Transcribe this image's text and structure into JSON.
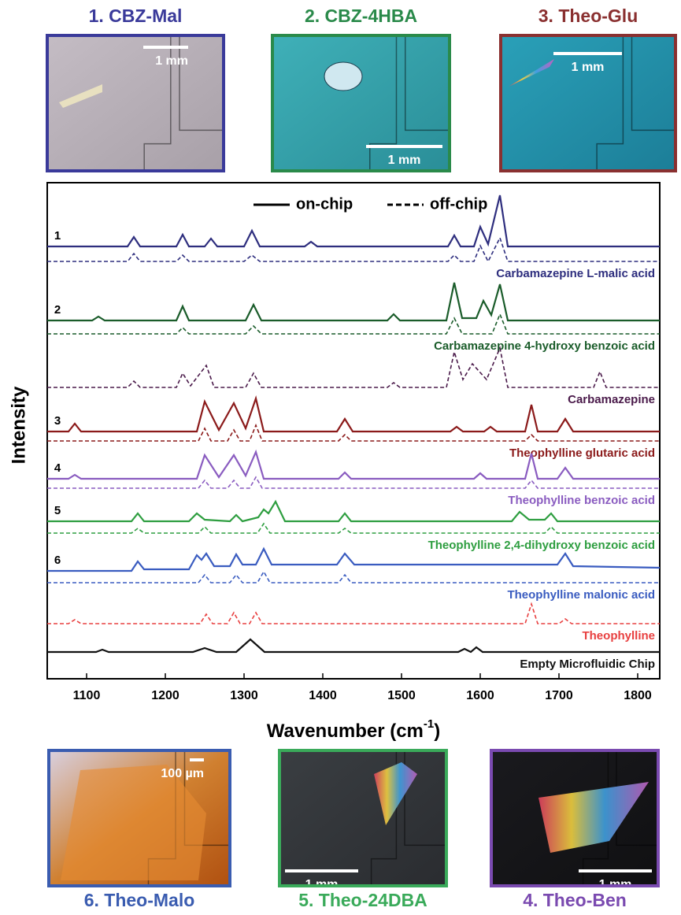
{
  "chart_data": {
    "type": "line",
    "xlabel": "Wavenumber (cm",
    "xlabel_sup": "-1",
    "xlabel_end": ")",
    "ylabel": "Intensity",
    "xlim": [
      1050,
      1828
    ],
    "xticks": [
      1100,
      1200,
      1300,
      1400,
      1500,
      1600,
      1700,
      1800
    ],
    "ylim": [
      0,
      630
    ],
    "legend": [
      {
        "label": "on-chip",
        "style": "solid"
      },
      {
        "label": "off-chip",
        "style": "dashed"
      }
    ],
    "series": [
      {
        "number": "1",
        "style": "solid",
        "color": "#2e2e7e",
        "x": [
          1050,
          1152,
          1160,
          1168,
          1214,
          1222,
          1230,
          1250,
          1258,
          1266,
          1300,
          1310,
          1320,
          1377,
          1385,
          1393,
          1559,
          1567,
          1575,
          1592,
          1600,
          1610,
          1625,
          1635,
          1828
        ],
        "values": [
          549,
          549,
          561,
          549,
          549,
          564,
          549,
          549,
          559,
          549,
          549,
          569,
          549,
          549,
          555,
          549,
          549,
          563,
          549,
          549,
          574,
          552,
          614,
          549,
          549
        ]
      },
      {
        "label": "Carbamazepine L-malic acid",
        "style": "dashed",
        "color": "#2e2e7e",
        "x": [
          1050,
          1152,
          1160,
          1168,
          1214,
          1222,
          1230,
          1300,
          1310,
          1320,
          1559,
          1567,
          1575,
          1592,
          1600,
          1610,
          1625,
          1635,
          1828
        ],
        "values": [
          530,
          530,
          540,
          530,
          530,
          538,
          530,
          530,
          538,
          530,
          530,
          538,
          530,
          530,
          550,
          530,
          560,
          530,
          530
        ]
      },
      {
        "number": "2",
        "style": "solid",
        "color": "#1a5c2a",
        "x": [
          1050,
          1107,
          1115,
          1123,
          1214,
          1222,
          1230,
          1302,
          1312,
          1322,
          1482,
          1490,
          1498,
          1557,
          1567,
          1577,
          1595,
          1604,
          1614,
          1625,
          1635,
          1828
        ],
        "values": [
          455,
          455,
          460,
          455,
          455,
          473,
          455,
          455,
          475,
          455,
          455,
          463,
          455,
          455,
          503,
          458,
          458,
          480,
          462,
          501,
          455,
          455
        ]
      },
      {
        "label": "Carbamazepine 4-hydroxy benzoic acid",
        "style": "dashed",
        "color": "#1a5c2a",
        "x": [
          1050,
          1214,
          1222,
          1230,
          1302,
          1312,
          1322,
          1557,
          1567,
          1577,
          1615,
          1625,
          1635,
          1828
        ],
        "values": [
          438,
          438,
          446,
          438,
          438,
          448,
          438,
          438,
          458,
          438,
          438,
          463,
          438,
          438
        ]
      },
      {
        "label": "Carbamazepine",
        "style": "dashed",
        "color": "#4a1a4a",
        "x": [
          1050,
          1152,
          1160,
          1168,
          1214,
          1222,
          1232,
          1252,
          1262,
          1302,
          1312,
          1322,
          1482,
          1490,
          1498,
          1557,
          1567,
          1578,
          1590,
          1608,
          1625,
          1635,
          1744,
          1752,
          1760,
          1828
        ],
        "values": [
          370,
          370,
          378,
          370,
          370,
          388,
          372,
          398,
          370,
          370,
          388,
          370,
          370,
          376,
          370,
          370,
          415,
          380,
          400,
          380,
          420,
          370,
          370,
          390,
          370,
          370
        ]
      },
      {
        "number": "3",
        "style": "solid",
        "color": "#8b1a1a",
        "x": [
          1050,
          1077,
          1085,
          1093,
          1240,
          1250,
          1268,
          1287,
          1302,
          1315,
          1325,
          1418,
          1428,
          1438,
          1562,
          1570,
          1578,
          1605,
          1613,
          1621,
          1657,
          1665,
          1673,
          1698,
          1708,
          1718,
          1828
        ],
        "values": [
          314,
          314,
          324,
          314,
          314,
          352,
          316,
          350,
          318,
          356,
          314,
          314,
          330,
          314,
          314,
          320,
          314,
          314,
          320,
          314,
          314,
          348,
          314,
          314,
          330,
          314,
          314
        ]
      },
      {
        "label": "Theophylline glutaric acid",
        "style": "dashed",
        "color": "#8b1a1a",
        "x": [
          1050,
          1242,
          1250,
          1258,
          1279,
          1287,
          1295,
          1307,
          1315,
          1323,
          1420,
          1428,
          1436,
          1657,
          1665,
          1673,
          1828
        ],
        "values": [
          302,
          302,
          318,
          302,
          302,
          316,
          302,
          302,
          322,
          302,
          302,
          310,
          302,
          302,
          310,
          302,
          302
        ]
      },
      {
        "number": "4",
        "style": "solid",
        "color": "#8a5cc0",
        "x": [
          1050,
          1077,
          1085,
          1093,
          1240,
          1250,
          1268,
          1287,
          1302,
          1315,
          1325,
          1420,
          1428,
          1436,
          1592,
          1600,
          1608,
          1657,
          1665,
          1673,
          1698,
          1708,
          1718,
          1828
        ],
        "values": [
          254,
          254,
          259,
          254,
          254,
          284,
          256,
          284,
          258,
          288,
          254,
          254,
          262,
          254,
          254,
          261,
          254,
          254,
          286,
          254,
          254,
          268,
          254,
          254
        ]
      },
      {
        "label": "Theophylline benzoic acid",
        "style": "dashed",
        "color": "#8a5cc0",
        "x": [
          1050,
          1242,
          1250,
          1258,
          1279,
          1287,
          1295,
          1307,
          1315,
          1323,
          1657,
          1665,
          1673,
          1828
        ],
        "values": [
          242,
          242,
          252,
          242,
          242,
          252,
          242,
          242,
          256,
          242,
          242,
          252,
          242,
          242
        ]
      },
      {
        "number": "5",
        "style": "solid",
        "color": "#2e9e40",
        "x": [
          1050,
          1157,
          1165,
          1173,
          1230,
          1240,
          1250,
          1282,
          1290,
          1298,
          1318,
          1325,
          1331,
          1340,
          1352,
          1420,
          1428,
          1436,
          1640,
          1650,
          1662,
          1682,
          1690,
          1698,
          1828
        ],
        "values": [
          200,
          200,
          210,
          200,
          200,
          210,
          202,
          200,
          208,
          200,
          205,
          215,
          210,
          225,
          200,
          200,
          210,
          200,
          200,
          212,
          202,
          202,
          210,
          200,
          200
        ]
      },
      {
        "label": "Theophylline 2,4-dihydroxy benzoic acid",
        "style": "dashed",
        "color": "#2e9e40",
        "x": [
          1050,
          1157,
          1165,
          1173,
          1242,
          1250,
          1258,
          1317,
          1325,
          1333,
          1420,
          1428,
          1436,
          1682,
          1690,
          1698,
          1828
        ],
        "values": [
          185,
          185,
          191,
          185,
          185,
          193,
          185,
          185,
          197,
          185,
          185,
          191,
          185,
          185,
          193,
          185,
          185
        ]
      },
      {
        "number": "6",
        "style": "solid",
        "color": "#3a5cc0",
        "x": [
          1050,
          1157,
          1165,
          1173,
          1230,
          1240,
          1246,
          1252,
          1262,
          1282,
          1290,
          1298,
          1315,
          1325,
          1335,
          1418,
          1428,
          1440,
          1698,
          1708,
          1718,
          1828
        ],
        "values": [
          137,
          137,
          149,
          139,
          139,
          157,
          151,
          159,
          143,
          143,
          158,
          145,
          145,
          165,
          145,
          145,
          159,
          145,
          145,
          159,
          143,
          141
        ]
      },
      {
        "label": "Theophylline malonic acid",
        "style": "dashed",
        "color": "#3a5cc0",
        "x": [
          1050,
          1242,
          1250,
          1258,
          1282,
          1290,
          1298,
          1317,
          1325,
          1333,
          1420,
          1428,
          1436,
          1828
        ],
        "values": [
          122,
          122,
          132,
          122,
          122,
          132,
          122,
          122,
          136,
          122,
          122,
          132,
          122,
          122
        ]
      },
      {
        "label": "Theophylline",
        "style": "dashed",
        "color": "#e84040",
        "x": [
          1050,
          1077,
          1085,
          1093,
          1244,
          1252,
          1260,
          1279,
          1287,
          1295,
          1307,
          1315,
          1323,
          1657,
          1665,
          1673,
          1700,
          1708,
          1716,
          1828
        ],
        "values": [
          70,
          70,
          75,
          70,
          70,
          82,
          70,
          70,
          84,
          70,
          70,
          84,
          70,
          70,
          95,
          70,
          70,
          76,
          70,
          70
        ]
      },
      {
        "label": "Empty Microfluidic Chip",
        "style": "solid",
        "color": "#111111",
        "x": [
          1050,
          1112,
          1120,
          1128,
          1235,
          1250,
          1265,
          1290,
          1308,
          1326,
          1572,
          1580,
          1588,
          1595,
          1603,
          1828
        ],
        "values": [
          34,
          34,
          37,
          34,
          34,
          39,
          34,
          34,
          50,
          34,
          34,
          38,
          34,
          40,
          34,
          34
        ]
      }
    ]
  },
  "images": [
    {
      "title": "1. CBZ-Mal",
      "scale_bar": "1 mm",
      "color": "#3a3a9a"
    },
    {
      "title": "2. CBZ-4HBA",
      "scale_bar": "1 mm",
      "color": "#2a8a4a"
    },
    {
      "title": "3. Theo-Glu",
      "scale_bar": "1 mm",
      "color": "#8a3030"
    },
    {
      "title": "6. Theo-Malo",
      "scale_bar": "100 µm",
      "color": "#3a5cb0"
    },
    {
      "title": "5. Theo-24DBA",
      "scale_bar": "1 mm",
      "color": "#3aaa5a"
    },
    {
      "title": "4. Theo-Ben",
      "scale_bar": "1 mm",
      "color": "#7a4ab0"
    }
  ]
}
